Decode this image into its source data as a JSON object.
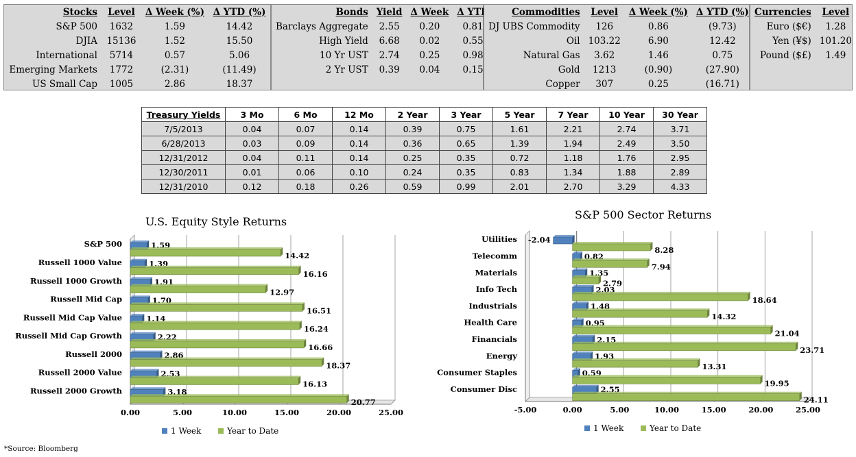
{
  "stocks": {
    "headers": [
      "Stocks",
      "Level",
      "Δ Week (%)",
      "Δ YTD (%)"
    ],
    "rows": [
      [
        "S&P 500",
        "1632",
        "1.59",
        "14.42"
      ],
      [
        "DJIA",
        "15136",
        "1.52",
        "15.50"
      ],
      [
        "International",
        "5714",
        "0.57",
        "5.06"
      ],
      [
        "Emerging Markets",
        "1772",
        "(2.31)",
        "(11.49)"
      ],
      [
        "US Small Cap",
        "1005",
        "2.86",
        "18.37"
      ]
    ]
  },
  "bonds": {
    "headers": [
      "Bonds",
      "Yield",
      "Δ Week",
      "Δ YTD"
    ],
    "rows": [
      [
        "Barclays Aggregate",
        "2.55",
        "0.20",
        "0.81"
      ],
      [
        "High Yield",
        "6.68",
        "0.02",
        "0.55"
      ],
      [
        "10 Yr UST",
        "2.74",
        "0.25",
        "0.98"
      ],
      [
        "2 Yr UST",
        "0.39",
        "0.04",
        "0.15"
      ]
    ]
  },
  "commodities": {
    "headers": [
      "Commodities",
      "Level",
      "Δ Week (%)",
      "Δ YTD (%)"
    ],
    "rows": [
      [
        "DJ UBS Commodity",
        "126",
        "0.86",
        "(9.73)"
      ],
      [
        "Oil",
        "103.22",
        "6.90",
        "12.42"
      ],
      [
        "Natural Gas",
        "3.62",
        "1.46",
        "0.75"
      ],
      [
        "Gold",
        "1213",
        "(0.90)",
        "(27.90)"
      ],
      [
        "Copper",
        "307",
        "0.25",
        "(16.71)"
      ]
    ]
  },
  "currencies": {
    "headers": [
      "Currencies",
      "Level"
    ],
    "rows": [
      [
        "Euro ($€)",
        "1.28"
      ],
      [
        "Yen (¥$)",
        "101.20"
      ],
      [
        "Pound ($£)",
        "1.49"
      ]
    ]
  },
  "treasury": {
    "headers": [
      "Treasury Yields",
      "3 Mo",
      "6 Mo",
      "12 Mo",
      "2 Year",
      "3 Year",
      "5 Year",
      "7 Year",
      "10 Year",
      "30 Year"
    ],
    "rows": [
      [
        "7/5/2013",
        "0.04",
        "0.07",
        "0.14",
        "0.39",
        "0.75",
        "1.61",
        "2.21",
        "2.74",
        "3.71"
      ],
      [
        "6/28/2013",
        "0.03",
        "0.09",
        "0.14",
        "0.36",
        "0.65",
        "1.39",
        "1.94",
        "2.49",
        "3.50"
      ],
      [
        "12/31/2012",
        "0.04",
        "0.11",
        "0.14",
        "0.25",
        "0.35",
        "0.72",
        "1.18",
        "1.76",
        "2.95"
      ],
      [
        "12/30/2011",
        "0.01",
        "0.06",
        "0.10",
        "0.24",
        "0.35",
        "0.83",
        "1.34",
        "1.88",
        "2.89"
      ],
      [
        "12/31/2010",
        "0.12",
        "0.18",
        "0.26",
        "0.59",
        "0.99",
        "2.01",
        "2.70",
        "3.29",
        "4.33"
      ]
    ]
  },
  "chart_data": [
    {
      "type": "bar",
      "orientation": "horizontal",
      "title": "U.S. Equity Style Returns",
      "categories": [
        "S&P 500",
        "Russell 1000 Value",
        "Russell 1000 Growth",
        "Russell Mid Cap",
        "Russell Mid Cap Value",
        "Russell Mid Cap Growth",
        "Russell 2000",
        "Russell 2000 Value",
        "Russell 2000 Growth"
      ],
      "series": [
        {
          "name": "1 Week",
          "color": "#4f81bd",
          "values": [
            1.59,
            1.39,
            1.91,
            1.7,
            1.14,
            2.22,
            2.86,
            2.53,
            3.18
          ],
          "labels": [
            "1.59",
            "1.39",
            "1.91",
            "1.70",
            "1.14",
            "2.22",
            "2.86",
            "2.53",
            "3.18"
          ]
        },
        {
          "name": "Year to Date",
          "color": "#9bbb59",
          "values": [
            14.42,
            16.16,
            12.97,
            16.51,
            16.24,
            16.66,
            18.37,
            16.13,
            20.77
          ],
          "labels": [
            "14.42",
            "16.16",
            "12.97",
            "16.51",
            "16.24",
            "16.66",
            "18.37",
            "16.13",
            "20.77"
          ]
        }
      ],
      "xlim": [
        0,
        25
      ],
      "ticks": [
        "0.00",
        "5.00",
        "10.00",
        "15.00",
        "20.00",
        "25.00"
      ],
      "grid": true,
      "legend": "bottom"
    },
    {
      "type": "bar",
      "orientation": "horizontal",
      "title": "S&P 500 Sector Returns",
      "categories": [
        "Utilities",
        "Telecomm",
        "Materials",
        "Info Tech",
        "Industrials",
        "Health Care",
        "Financials",
        "Energy",
        "Consumer Staples",
        "Consumer Disc"
      ],
      "series": [
        {
          "name": "1 Week",
          "color": "#4f81bd",
          "values": [
            -2.04,
            0.82,
            1.35,
            2.03,
            1.48,
            0.95,
            2.15,
            1.93,
            0.59,
            2.55
          ],
          "labels": [
            "-2.04",
            "0.82",
            "1.35",
            "2.03",
            "1.48",
            "0.95",
            "2.15",
            "1.93",
            "0.59",
            "2.55"
          ]
        },
        {
          "name": "Year to Date",
          "color": "#9bbb59",
          "values": [
            8.28,
            7.94,
            2.79,
            18.64,
            14.32,
            21.04,
            23.71,
            13.31,
            19.95,
            24.11
          ],
          "labels": [
            "8.28",
            "7.94",
            "2.79",
            "18.64",
            "14.32",
            "21.04",
            "23.71",
            "13.31",
            "19.95",
            "24.11"
          ]
        }
      ],
      "xlim": [
        -5,
        25
      ],
      "ticks": [
        "-5.00",
        "0.00",
        "5.00",
        "10.00",
        "15.00",
        "20.00",
        "25.00"
      ],
      "grid": true,
      "legend": "bottom"
    }
  ],
  "source_note": "*Source: Bloomberg"
}
